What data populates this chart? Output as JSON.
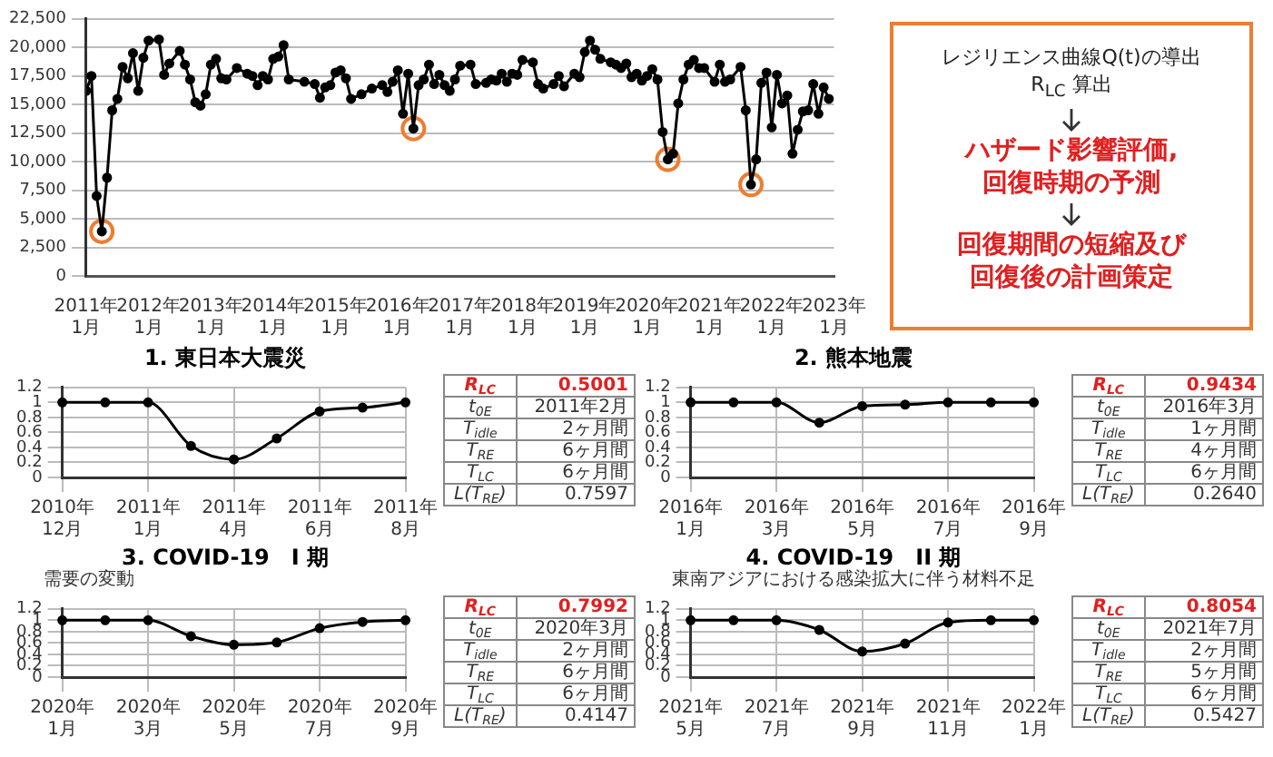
{
  "chart_data": [
    {
      "type": "line",
      "marker": "circle",
      "grid": "y",
      "legend": false,
      "xlim": [
        "2011-01",
        "2023-01"
      ],
      "xticks": [
        {
          "value": "2011-01",
          "label": "2011年1月"
        },
        {
          "value": "2012-01",
          "label": "2012年1月"
        },
        {
          "value": "2013-01",
          "label": "2013年1月"
        },
        {
          "value": "2014-01",
          "label": "2014年1月"
        },
        {
          "value": "2015-01",
          "label": "2015年1月"
        },
        {
          "value": "2016-01",
          "label": "2016年1月"
        },
        {
          "value": "2017-01",
          "label": "2017年1月"
        },
        {
          "value": "2018-01",
          "label": "2018年1月"
        },
        {
          "value": "2019-01",
          "label": "2019年1月"
        },
        {
          "value": "2020-01",
          "label": "2020年1月"
        },
        {
          "value": "2021-01",
          "label": "2021年1月"
        },
        {
          "value": "2022-01",
          "label": "2022年1月"
        },
        {
          "value": "2023-01",
          "label": "2023年1月"
        }
      ],
      "ylim": [
        0,
        22500
      ],
      "yticks": [
        0,
        {
          "value": 2500,
          "label": "2,500"
        },
        {
          "value": 5000,
          "label": "5,000"
        },
        {
          "value": 7500,
          "label": "7,500"
        },
        {
          "value": 10000,
          "label": "10,000"
        },
        {
          "value": 12500,
          "label": "12,500"
        },
        {
          "value": 15000,
          "label": "15,000"
        },
        {
          "value": 17500,
          "label": "17,500"
        },
        {
          "value": 20000,
          "label": "20,000"
        },
        {
          "value": 22500,
          "label": "22,500"
        }
      ],
      "series": [
        {
          "color": "#000000",
          "x": [
            "2011-01",
            "2011-02",
            "2011-03",
            "2011-04",
            "2011-05",
            "2011-06",
            "2011-07",
            "2011-08",
            "2011-09",
            "2011-10",
            "2011-11",
            "2011-12",
            "2012-01",
            "2012-03",
            "2012-04",
            "2012-05",
            "2012-07",
            "2012-08",
            "2012-09",
            "2012-10",
            "2012-11",
            "2012-12",
            "2013-01",
            "2013-02",
            "2013-03",
            "2013-04",
            "2013-06",
            "2013-08",
            "2013-09",
            "2013-10",
            "2013-11",
            "2013-12",
            "2014-01",
            "2014-02",
            "2014-03",
            "2014-04",
            "2014-07",
            "2014-09",
            "2014-10",
            "2014-11",
            "2014-12",
            "2015-01",
            "2015-02",
            "2015-03",
            "2015-04",
            "2015-06",
            "2015-08",
            "2015-10",
            "2015-11",
            "2015-12",
            "2016-01",
            "2016-02",
            "2016-03",
            "2016-04",
            "2016-05",
            "2016-06",
            "2016-07",
            "2016-08",
            "2016-09",
            "2016-10",
            "2016-11",
            "2016-12",
            "2017-01",
            "2017-03",
            "2017-04",
            "2017-06",
            "2017-07",
            "2017-08",
            "2017-09",
            "2017-10",
            "2017-11",
            "2017-12",
            "2018-01",
            "2018-03",
            "2018-04",
            "2018-05",
            "2018-07",
            "2018-08",
            "2018-09",
            "2018-11",
            "2018-12",
            "2019-01",
            "2019-02",
            "2019-03",
            "2019-04",
            "2019-06",
            "2019-07",
            "2019-08",
            "2019-09",
            "2019-10",
            "2019-11",
            "2019-12",
            "2020-01",
            "2020-02",
            "2020-03",
            "2020-04",
            "2020-05",
            "2020-06",
            "2020-07",
            "2020-08",
            "2020-09",
            "2020-10",
            "2020-11",
            "2020-12",
            "2021-02",
            "2021-03",
            "2021-04",
            "2021-05",
            "2021-07",
            "2021-08",
            "2021-09",
            "2021-10",
            "2021-11",
            "2021-12",
            "2022-01",
            "2022-02",
            "2022-03",
            "2022-04",
            "2022-05",
            "2022-06",
            "2022-07",
            "2022-08",
            "2022-09",
            "2022-10",
            "2022-11",
            "2022-12"
          ],
          "values": [
            16200,
            17500,
            7000,
            3900,
            8600,
            14500,
            15500,
            18300,
            17300,
            19500,
            16200,
            19100,
            20600,
            20700,
            17600,
            18600,
            19700,
            18500,
            17200,
            15200,
            14900,
            15900,
            18500,
            19000,
            17300,
            17200,
            18200,
            17700,
            17500,
            16700,
            17500,
            17200,
            19000,
            19200,
            20200,
            17200,
            17000,
            16800,
            15600,
            16500,
            16700,
            17800,
            18000,
            17300,
            15500,
            15900,
            16400,
            16700,
            16100,
            17000,
            18000,
            14200,
            17700,
            12900,
            16700,
            17200,
            18500,
            16800,
            17600,
            16700,
            16200,
            17200,
            18400,
            18500,
            16800,
            16900,
            17200,
            17100,
            17700,
            17000,
            17700,
            17600,
            18900,
            18700,
            16800,
            16400,
            16800,
            17500,
            16600,
            17700,
            17400,
            19600,
            20600,
            19800,
            19000,
            18700,
            18500,
            18200,
            18600,
            17400,
            17700,
            17100,
            17500,
            18100,
            17200,
            12600,
            10200,
            10700,
            15100,
            17200,
            18500,
            18900,
            18200,
            18200,
            17000,
            18500,
            17000,
            17200,
            18300,
            14500,
            8000,
            10200,
            16900,
            17800,
            13000,
            17600,
            15100,
            15800,
            10700,
            12800,
            14400,
            14500,
            16800,
            14200,
            16500,
            15500
          ]
        },
        {
          "type": "scatter",
          "color": "#ed7d31",
          "x": [
            "2011-04",
            "2016-04",
            "2020-05",
            "2021-09"
          ],
          "values": [
            3900,
            12900,
            10200,
            8000
          ]
        }
      ]
    },
    {
      "type": "other",
      "annotations": [
        "レジリエンス曲線Q(t)の導出",
        "R$_{LC}$ 算出",
        "ハザード影響評価,",
        "回復時期の予測",
        "回復期間の短縮及び",
        "回復後の計画策定"
      ]
    },
    {
      "type": "line",
      "title": "1. 東日本大震災",
      "marker": "circle",
      "grid": true,
      "legend": false,
      "color": "#000000",
      "categories": [
        "2010年12月",
        null,
        "2011年1月",
        null,
        "2011年4月",
        null,
        "2011年6月",
        null,
        "2011年8月"
      ],
      "values": [
        1,
        1,
        1,
        0.42,
        0.24,
        0.52,
        0.88,
        0.93,
        1
      ],
      "ylim": [
        0,
        1.2
      ],
      "yticks": [
        0,
        0.2,
        0.4,
        0.6,
        0.8,
        1,
        1.2
      ],
      "annotations": [
        "R$_{LC}$",
        "0.5001",
        "t$_{0E}$",
        "2011年2月",
        "T$_{idle}$",
        "2ヶ月間",
        "T$_{RE}$",
        "6ヶ月間",
        "T$_{LC}$",
        "6ヶ月間",
        "L(T$_{RE}$)",
        "0.7597"
      ]
    },
    {
      "type": "line",
      "title": "2. 熊本地震",
      "marker": "circle",
      "grid": true,
      "legend": false,
      "color": "#000000",
      "categories": [
        "2016年1月",
        null,
        "2016年3月",
        null,
        "2016年5月",
        null,
        "2016年7月",
        null,
        "2016年9月"
      ],
      "values": [
        1,
        1,
        1,
        0.73,
        0.95,
        0.97,
        1,
        1,
        1
      ],
      "ylim": [
        0,
        1.2
      ],
      "yticks": [
        0,
        0.2,
        0.4,
        0.6,
        0.8,
        1,
        1.2
      ],
      "annotations": [
        "R$_{LC}$",
        "0.9434",
        "t$_{0E}$",
        "2016年3月",
        "T$_{idle}$",
        "1ヶ月間",
        "T$_{RE}$",
        "4ヶ月間",
        "T$_{LC}$",
        "6ヶ月間",
        "L(T$_{RE}$)",
        "0.2640"
      ]
    },
    {
      "type": "line",
      "title": "3. COVID-19　I 期",
      "subtitle": "需要の変動",
      "marker": "circle",
      "grid": true,
      "legend": false,
      "color": "#000000",
      "categories": [
        "2020年1月",
        null,
        "2020年3月",
        null,
        "2020年5月",
        null,
        "2020年7月",
        null,
        "2020年9月"
      ],
      "values": [
        1,
        1,
        1,
        0.72,
        0.57,
        0.61,
        0.86,
        0.97,
        1
      ],
      "ylim": [
        0,
        1.2
      ],
      "yticks": [
        0,
        0.2,
        0.4,
        0.6,
        0.8,
        1,
        1.2
      ],
      "annotations": [
        "R$_{LC}$",
        "0.7992",
        "t$_{0E}$",
        "2020年3月",
        "T$_{idle}$",
        "2ヶ月間",
        "T$_{RE}$",
        "6ヶ月間",
        "T$_{LC}$",
        "6ヶ月間",
        "L(T$_{RE}$)",
        "0.4147"
      ]
    },
    {
      "type": "line",
      "title": "4. COVID-19　II 期",
      "subtitle": "東南アジアにおける感染拡大に伴う材料不足",
      "marker": "circle",
      "grid": true,
      "legend": false,
      "color": "#000000",
      "categories": [
        "2021年5月",
        null,
        "2021年7月",
        null,
        "2021年9月",
        null,
        "2021年11月",
        null,
        "2022年1月"
      ],
      "values": [
        1,
        1,
        1,
        0.83,
        0.45,
        0.59,
        0.96,
        1,
        1
      ],
      "ylim": [
        0,
        1.2
      ],
      "yticks": [
        0,
        0.2,
        0.4,
        0.6,
        0.8,
        1,
        1.2
      ],
      "annotations": [
        "R$_{LC}$",
        "0.8054",
        "t$_{0E}$",
        "2021年7月",
        "T$_{idle}$",
        "2ヶ月間",
        "T$_{RE}$",
        "5ヶ月間",
        "T$_{LC}$",
        "6ヶ月間",
        "L(T$_{RE}$)",
        "0.5427"
      ]
    }
  ]
}
